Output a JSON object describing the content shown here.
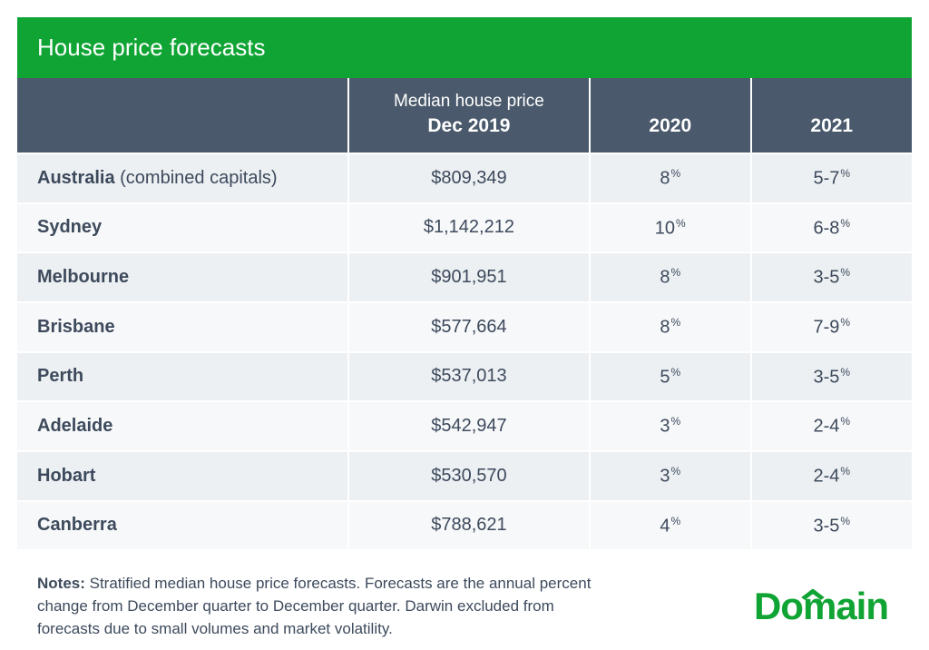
{
  "colors": {
    "title_bg": "#0fa433",
    "header_bg": "#4a5a6c",
    "row_odd_bg": "#edf0f3",
    "row_even_bg": "#f7f8fa",
    "text": "#3d4a5c",
    "logo": "#0fa433",
    "white": "#ffffff"
  },
  "layout": {
    "col_widths": [
      "37%",
      "27%",
      "18%",
      "18%"
    ],
    "title_fontsize": 26,
    "header_fontsize": 20,
    "cell_fontsize": 20,
    "notes_fontsize": 17
  },
  "title": "House price forecasts",
  "columns": {
    "c0": "",
    "c1_line1": "Median house price",
    "c1_line2": "Dec 2019",
    "c2": "2020",
    "c3": "2021"
  },
  "rows": [
    {
      "region_bold": "Australia",
      "region_paren": " (combined capitals)",
      "price": "$809,349",
      "y2020": "8",
      "y2021": "5-7"
    },
    {
      "region_bold": "Sydney",
      "region_paren": "",
      "price": "$1,142,212",
      "y2020": "10",
      "y2021": "6-8"
    },
    {
      "region_bold": "Melbourne",
      "region_paren": "",
      "price": "$901,951",
      "y2020": "8",
      "y2021": "3-5"
    },
    {
      "region_bold": "Brisbane",
      "region_paren": "",
      "price": "$577,664",
      "y2020": "8",
      "y2021": "7-9"
    },
    {
      "region_bold": "Perth",
      "region_paren": "",
      "price": "$537,013",
      "y2020": "5",
      "y2021": "3-5"
    },
    {
      "region_bold": "Adelaide",
      "region_paren": "",
      "price": "$542,947",
      "y2020": "3",
      "y2021": "2-4"
    },
    {
      "region_bold": "Hobart",
      "region_paren": "",
      "price": "$530,570",
      "y2020": "3",
      "y2021": "2-4"
    },
    {
      "region_bold": "Canberra",
      "region_paren": "",
      "price": "$788,621",
      "y2020": "4",
      "y2021": "3-5"
    }
  ],
  "notes_label": "Notes: ",
  "notes_text": "Stratified median house price forecasts. Forecasts are the annual percent change from December quarter to December quarter. Darwin excluded from forecasts due to small volumes and market volatility.",
  "logo_text_pre": "Do",
  "logo_text_mid": "m",
  "logo_text_post": "ain",
  "pct_sign": "%"
}
